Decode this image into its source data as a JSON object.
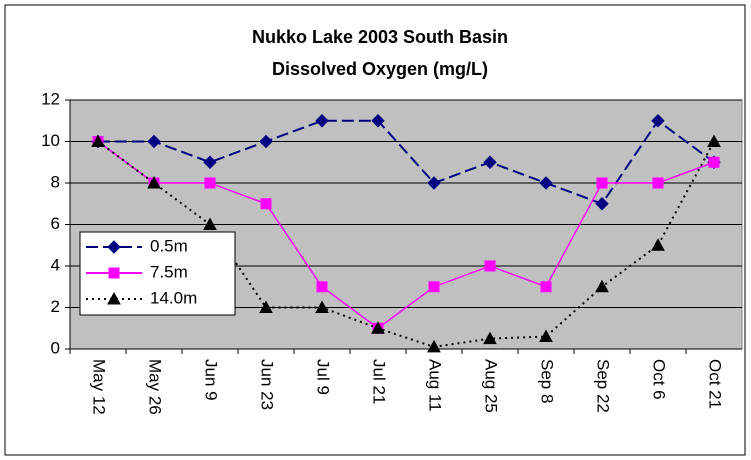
{
  "chart_data": {
    "type": "line",
    "title": "Nukko Lake 2003 South Basin",
    "subtitle": "Dissolved Oxygen (mg/L)",
    "categories": [
      "May 12",
      "May 26",
      "Jun 9",
      "Jun 23",
      "Jul 9",
      "Jul 21",
      "Aug 11",
      "Aug 25",
      "Sep 8",
      "Sep 22",
      "Oct 6",
      "Oct 21"
    ],
    "series": [
      {
        "name": "0.5m",
        "color": "#000080",
        "marker": "diamond",
        "line_style": "dashed",
        "values": [
          10,
          10,
          9,
          10,
          11,
          11,
          8,
          9,
          8,
          7,
          11,
          9
        ]
      },
      {
        "name": "7.5m",
        "color": "#ff00ff",
        "marker": "square",
        "line_style": "solid",
        "values": [
          10,
          8,
          8,
          7,
          3,
          1,
          3,
          4,
          3,
          8,
          8,
          9
        ]
      },
      {
        "name": "14.0m",
        "color": "#000000",
        "marker": "triangle",
        "line_style": "dotted",
        "values": [
          10,
          8,
          6,
          2,
          2,
          1,
          0.1,
          0.5,
          0.6,
          3,
          5,
          10
        ]
      }
    ],
    "ylim": [
      0,
      12
    ],
    "yticks": [
      0,
      2,
      4,
      6,
      8,
      10,
      12
    ],
    "grid": true,
    "legend": "lower left"
  }
}
